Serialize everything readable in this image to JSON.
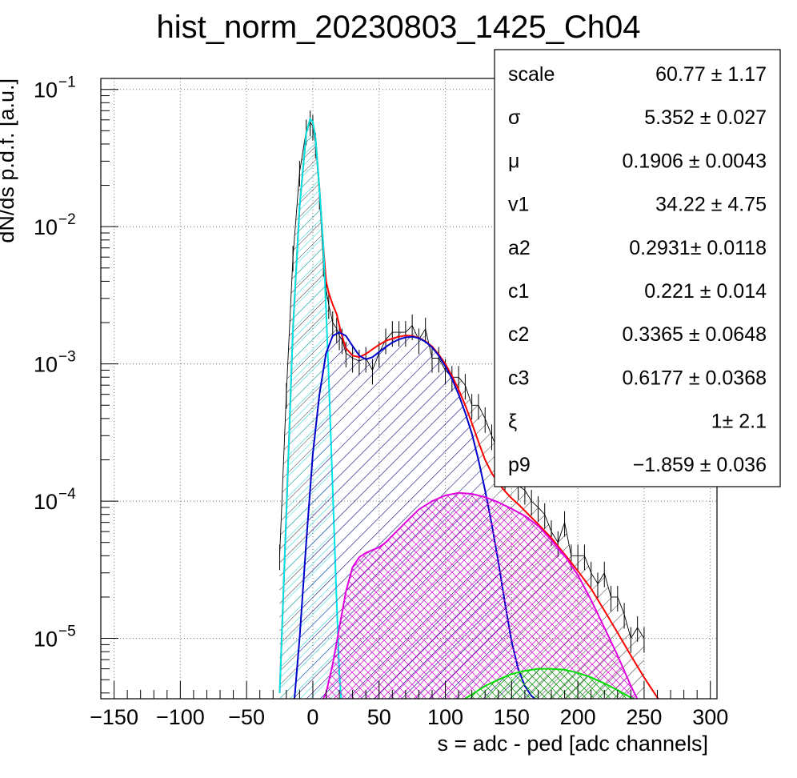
{
  "chart_data": {
    "type": "line",
    "title": "hist_norm_20230803_1425_Ch04",
    "xlabel": "s = adc - ped [adc channels]",
    "ylabel": "dN/ds p.d.f. [a.u.]",
    "xlim": [
      -160,
      305
    ],
    "ylim_log10": [
      -5.44,
      -0.92
    ],
    "log_y": true,
    "grid": true,
    "x_ticks": [
      -150,
      -100,
      -50,
      0,
      50,
      100,
      150,
      200,
      250,
      300
    ],
    "x_tick_labels": [
      "−150",
      "−100",
      "−50",
      "0",
      "50",
      "100",
      "150",
      "200",
      "250",
      "300"
    ],
    "y_ticks": [
      {
        "exp": -1,
        "label_base": "10",
        "label_exp": "−1"
      },
      {
        "exp": -2,
        "label_base": "10",
        "label_exp": "−2"
      },
      {
        "exp": -3,
        "label_base": "10",
        "label_exp": "−3"
      },
      {
        "exp": -4,
        "label_base": "10",
        "label_exp": "−4"
      },
      {
        "exp": -5,
        "label_base": "10",
        "label_exp": "−5"
      }
    ],
    "series": [
      {
        "color": "#000000",
        "style": "histogram-hatched",
        "x": [
          -25,
          -20,
          -15,
          -10,
          -5,
          -2,
          0,
          2,
          5,
          8,
          10,
          12,
          15,
          18,
          20,
          22,
          25,
          30,
          35,
          40,
          45,
          50,
          55,
          60,
          65,
          70,
          75,
          80,
          85,
          90,
          95,
          100,
          105,
          110,
          115,
          120,
          125,
          130,
          135,
          140,
          145,
          150,
          155,
          160,
          165,
          170,
          175,
          180,
          185,
          190,
          195,
          200,
          205,
          210,
          215,
          220,
          225,
          230,
          235,
          240,
          245,
          250
        ],
        "y": [
          4e-05,
          0.0006,
          0.006,
          0.025,
          0.05,
          0.058,
          0.054,
          0.04,
          0.017,
          0.0055,
          0.0035,
          0.0027,
          0.002,
          0.0018,
          0.0016,
          0.0015,
          0.0012,
          0.0011,
          0.00105,
          0.0011,
          0.0009,
          0.0012,
          0.0015,
          0.0017,
          0.0017,
          0.0017,
          0.0019,
          0.0015,
          0.0018,
          0.0011,
          0.0011,
          0.0009,
          0.0008,
          0.0008,
          0.0007,
          0.0005,
          0.0005,
          0.0004,
          0.0003,
          0.00023,
          0.00015,
          0.0002,
          0.00013,
          0.00012,
          0.0001,
          9e-05,
          8e-05,
          6e-05,
          5e-05,
          7e-05,
          4e-05,
          4e-05,
          4e-05,
          3e-05,
          2.5e-05,
          3e-05,
          2e-05,
          2e-05,
          1.5e-05,
          1e-05,
          1.2e-05,
          1e-05
        ]
      },
      {
        "color": "#ff0000",
        "style": "line",
        "x": [
          -25,
          -20,
          -15,
          -10,
          -5,
          -2,
          0,
          2,
          5,
          8,
          10,
          12,
          15,
          18,
          20,
          22,
          25,
          30,
          35,
          40,
          45,
          50,
          55,
          60,
          65,
          70,
          75,
          80,
          85,
          90,
          95,
          100,
          105,
          110,
          115,
          120,
          125,
          130,
          135,
          140,
          145,
          150,
          155,
          160,
          170,
          180,
          190,
          200,
          210,
          220,
          230,
          240,
          250,
          260,
          265
        ],
        "y": [
          4e-06,
          8e-05,
          0.0018,
          0.014,
          0.048,
          0.061,
          0.058,
          0.044,
          0.019,
          0.007,
          0.004,
          0.0033,
          0.0027,
          0.0023,
          0.0019,
          0.0016,
          0.0013,
          0.00115,
          0.00112,
          0.00118,
          0.00128,
          0.00138,
          0.00147,
          0.00153,
          0.00158,
          0.00161,
          0.0016,
          0.00155,
          0.00146,
          0.00134,
          0.00117,
          0.001,
          0.00082,
          0.00065,
          0.0005,
          0.00037,
          0.00027,
          0.0002,
          0.00016,
          0.000135,
          0.000118,
          0.000105,
          9.5e-05,
          8.5e-05,
          6.8e-05,
          5.4e-05,
          4.1e-05,
          3.1e-05,
          2.3e-05,
          1.6e-05,
          1.1e-05,
          7.5e-06,
          5.2e-06,
          3.7e-06,
          3.2e-06
        ]
      },
      {
        "color": "#00e5e5",
        "style": "line-hatched",
        "x": [
          -25,
          -20,
          -15,
          -10,
          -5,
          -2,
          0,
          2,
          5,
          8,
          10,
          12,
          15,
          18,
          20,
          22
        ],
        "y": [
          4e-06,
          8e-05,
          0.0018,
          0.014,
          0.048,
          0.061,
          0.058,
          0.044,
          0.019,
          0.007,
          0.0025,
          0.0008,
          0.00012,
          1.8e-05,
          5.5e-06,
          3e-06
        ]
      },
      {
        "color": "#0000cc",
        "style": "line-hatched",
        "x": [
          -14,
          -10,
          -5,
          0,
          5,
          10,
          15,
          20,
          25,
          30,
          35,
          40,
          45,
          50,
          55,
          60,
          65,
          70,
          75,
          80,
          85,
          90,
          95,
          100,
          105,
          110,
          115,
          120,
          125,
          130,
          135,
          140,
          145,
          150,
          155,
          160,
          165,
          170
        ],
        "y": [
          3.5e-06,
          1e-05,
          5e-05,
          0.00022,
          0.0006,
          0.0012,
          0.0016,
          0.0017,
          0.0016,
          0.00135,
          0.00115,
          0.00108,
          0.00112,
          0.00122,
          0.00133,
          0.00143,
          0.00151,
          0.00156,
          0.00158,
          0.00154,
          0.00145,
          0.00132,
          0.00115,
          0.00096,
          0.00078,
          0.0006,
          0.00044,
          0.00031,
          0.0002,
          0.00012,
          6.8e-05,
          3.6e-05,
          1.8e-05,
          9.5e-06,
          6e-06,
          4.5e-06,
          3.8e-06,
          3.5e-06
        ]
      },
      {
        "color": "#e000e0",
        "style": "line-hatched",
        "x": [
          7,
          10,
          15,
          20,
          25,
          30,
          35,
          40,
          45,
          50,
          55,
          60,
          70,
          80,
          90,
          100,
          110,
          120,
          130,
          140,
          150,
          160,
          170,
          180,
          190,
          200,
          210,
          220,
          230,
          240,
          245
        ],
        "y": [
          3.5e-06,
          4e-06,
          6.5e-06,
          1.2e-05,
          2.2e-05,
          3.3e-05,
          3.9e-05,
          4.2e-05,
          4.4e-05,
          4.6e-05,
          5e-05,
          5.6e-05,
          7e-05,
          8.7e-05,
          0.0001,
          0.00011,
          0.000115,
          0.000113,
          0.000107,
          9.8e-05,
          8.8e-05,
          7.8e-05,
          6.6e-05,
          5.2e-05,
          4e-05,
          2.9e-05,
          1.9e-05,
          1.2e-05,
          7.5e-06,
          4.5e-06,
          3.6e-06
        ]
      },
      {
        "color": "#00e000",
        "style": "line-hatched",
        "x": [
          112,
          120,
          130,
          140,
          150,
          160,
          170,
          180,
          190,
          200,
          210,
          220,
          230,
          240,
          248
        ],
        "y": [
          3.5e-06,
          3.9e-06,
          4.5e-06,
          5e-06,
          5.5e-06,
          5.8e-06,
          6e-06,
          6e-06,
          5.9e-06,
          5.6e-06,
          5.2e-06,
          4.7e-06,
          4.2e-06,
          3.7e-06,
          3.4e-06
        ]
      }
    ]
  },
  "stats_box": {
    "rows": [
      {
        "name": "scale",
        "value": "60.77 ± 1.17"
      },
      {
        "name": "σ",
        "value": "5.352 ± 0.027"
      },
      {
        "name": "μ",
        "value": "0.1906 ± 0.0043"
      },
      {
        "name": "v1",
        "value": "34.22 ± 4.75"
      },
      {
        "name": "a2",
        "value": "0.2931± 0.0118"
      },
      {
        "name": "c1",
        "value": "0.221 ± 0.014"
      },
      {
        "name": "c2",
        "value": "0.3365 ± 0.0648"
      },
      {
        "name": "c3",
        "value": "0.6177 ± 0.0368"
      },
      {
        "name": "ξ",
        "value": "1± 2.1"
      },
      {
        "name": "p9",
        "value": "−1.859 ± 0.036"
      }
    ]
  }
}
